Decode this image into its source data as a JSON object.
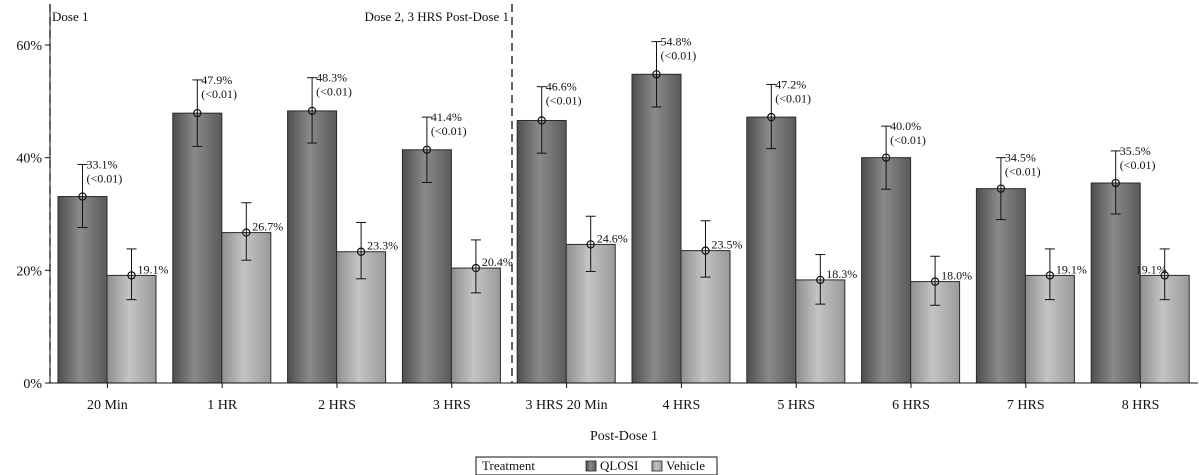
{
  "chart_data": {
    "type": "bar",
    "xlabel": "Post-Dose 1",
    "ylabel": "",
    "ylim": [
      0,
      0.6
    ],
    "yticks": [
      0,
      0.2,
      0.4,
      0.6
    ],
    "ytick_labels": [
      "0%",
      "20%",
      "40%",
      "60%"
    ],
    "grid": false,
    "categories": [
      "20 Min",
      "1 HR",
      "2 HRS",
      "3 HRS",
      "3 HRS 20 Min",
      "4 HRS",
      "5 HRS",
      "6 HRS",
      "7 HRS",
      "8 HRS"
    ],
    "series": [
      {
        "name": "QLOSI",
        "color": "#6f6f6f",
        "values": [
          0.331,
          0.479,
          0.483,
          0.414,
          0.466,
          0.548,
          0.472,
          0.4,
          0.345,
          0.355
        ],
        "err_low": [
          0.276,
          0.42,
          0.426,
          0.356,
          0.408,
          0.49,
          0.416,
          0.344,
          0.29,
          0.3
        ],
        "err_high": [
          0.388,
          0.538,
          0.542,
          0.472,
          0.526,
          0.606,
          0.53,
          0.456,
          0.4,
          0.412
        ],
        "labels": [
          "33.1%",
          "47.9%",
          "48.3%",
          "41.4%",
          "46.6%",
          "54.8%",
          "47.2%",
          "40.0%",
          "34.5%",
          "35.5%"
        ],
        "p_labels": [
          "(<0.01)",
          "(<0.01)",
          "(<0.01)",
          "(<0.01)",
          "(<0.01)",
          "(<0.01)",
          "(<0.01)",
          "(<0.01)",
          "(<0.01)",
          "(<0.01)"
        ]
      },
      {
        "name": "Vehicle",
        "color": "#a9a9a9",
        "values": [
          0.191,
          0.267,
          0.233,
          0.204,
          0.246,
          0.235,
          0.183,
          0.18,
          0.191,
          0.191
        ],
        "err_low": [
          0.148,
          0.218,
          0.185,
          0.16,
          0.198,
          0.188,
          0.14,
          0.138,
          0.148,
          0.148
        ],
        "err_high": [
          0.238,
          0.32,
          0.285,
          0.254,
          0.296,
          0.288,
          0.228,
          0.225,
          0.238,
          0.238
        ],
        "labels": [
          "19.1%",
          "26.7%",
          "23.3%",
          "20.4%",
          "24.6%",
          "23.5%",
          "18.3%",
          "18.0%",
          "19.1%",
          "19.1%"
        ]
      }
    ],
    "annotations": [
      "Dose 1",
      "Dose 2, 3 HRS Post-Dose 1"
    ],
    "legend": {
      "title": "Treatment",
      "position": "bottom-center"
    }
  }
}
